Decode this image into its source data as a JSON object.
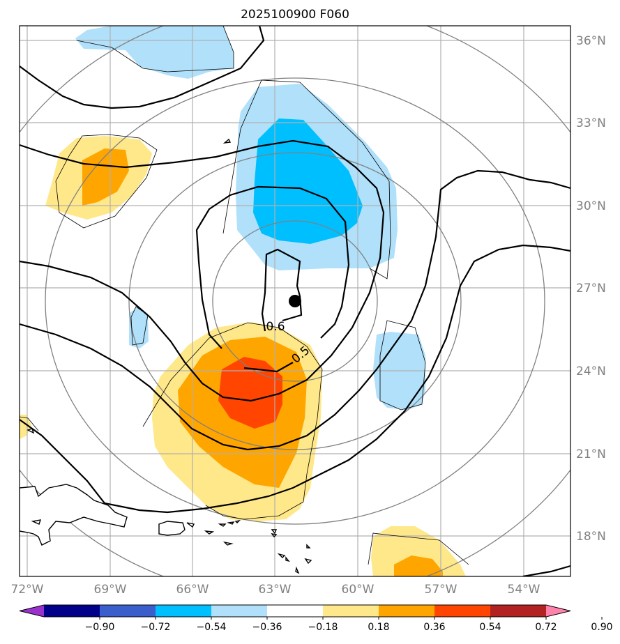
{
  "title": "2025100900 F060",
  "lon_labels": [
    "72°W",
    "69°W",
    "66°W",
    "63°W",
    "60°W",
    "57°W",
    "54°W"
  ],
  "lat_labels": [
    "36°N",
    "33°N",
    "30°N",
    "27°N",
    "24°N",
    "21°N",
    "18°N"
  ],
  "colorbar": {
    "ticks": [
      "−0.90",
      "−0.72",
      "−0.54",
      "−0.36",
      "−0.18",
      "0.18",
      "0.36",
      "0.54",
      "0.72",
      "0.90"
    ],
    "colors": [
      "#9932cc",
      "#00008b",
      "#3a5fcd",
      "#00bfff",
      "#b0e0fa",
      "#ffffff",
      "#ffe88a",
      "#ffa500",
      "#ff4500",
      "#b22222",
      "#ff82ab"
    ]
  },
  "contour_labels": [
    "0.6",
    "0.5"
  ],
  "colors": {
    "fill_neg_light": "#b0e0fa",
    "fill_neg_mid": "#00bfff",
    "fill_pos_light": "#ffe88a",
    "fill_pos_mid": "#ffa500",
    "fill_pos_high": "#ff4500",
    "grid": "#b0b0b0",
    "range_ring": "#808080"
  },
  "center_marker": "storm-center-dot"
}
